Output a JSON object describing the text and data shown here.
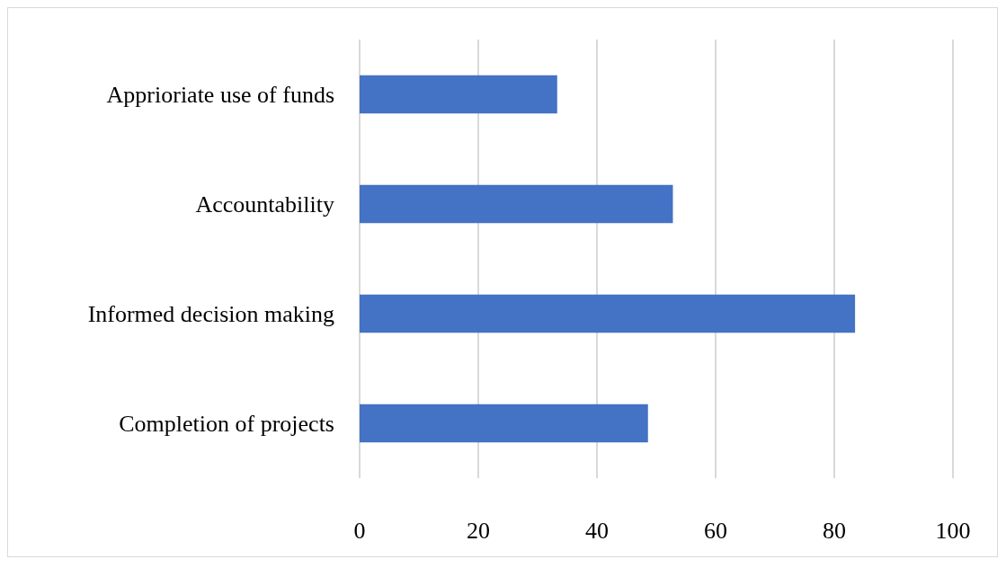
{
  "chart_data": {
    "type": "bar",
    "orientation": "horizontal",
    "categories": [
      "Apprioriate use of funds",
      "Accountability",
      "Informed decision making",
      "Completion of projects"
    ],
    "values": [
      33.3,
      52.8,
      83.5,
      48.6
    ],
    "color": "#4472c4",
    "xlim": [
      0,
      100
    ],
    "xticks": [
      0,
      20,
      40,
      60,
      80,
      100
    ],
    "grid": "x"
  }
}
